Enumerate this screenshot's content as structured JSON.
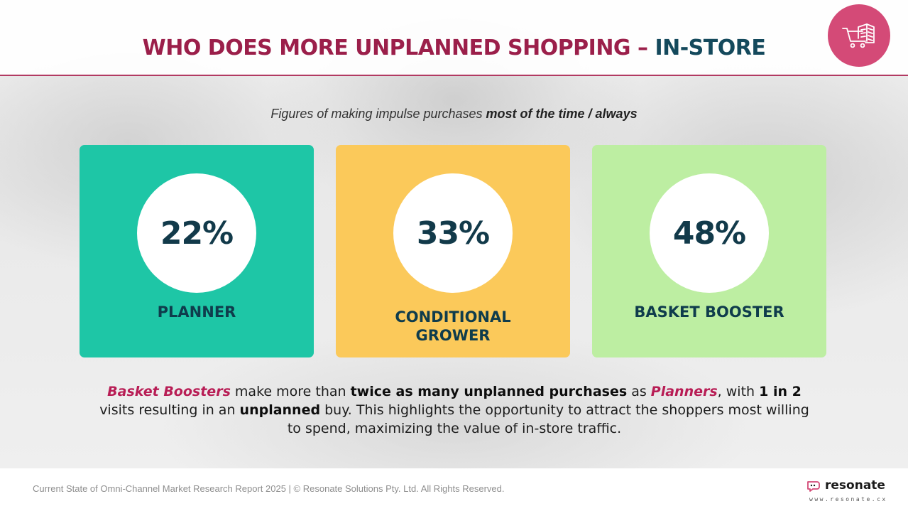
{
  "header": {
    "title_main": "WHO DOES MORE UNPLANNED SHOPPING – ",
    "title_accent": "IN-STORE",
    "logo_icon": "shopping-cart-building-icon"
  },
  "subtitle": {
    "lead": "Figures of making impulse purchases ",
    "emphasis": "most of the time / always"
  },
  "cards": [
    {
      "percent": "22%",
      "label": "PLANNER",
      "color": "#1ec6a6"
    },
    {
      "percent": "33%",
      "label_line1": "CONDITIONAL",
      "label_line2": "GROWER",
      "color": "#fbc95a"
    },
    {
      "percent": "48%",
      "label": "BASKET BOOSTER",
      "color": "#bdeea2"
    }
  ],
  "summary": {
    "p1": "Basket Boosters",
    "p2": " make more than ",
    "p3": "twice as many unplanned purchases",
    "p4": " as ",
    "p5": "Planners",
    "p6": ", with ",
    "p7": "1 in 2",
    "p8": " visits resulting in an ",
    "p9": "unplanned",
    "p10": " buy. This highlights the opportunity to attract the shoppers most willing to spend, maximizing the value of in-store traffic."
  },
  "footer": {
    "copyright": "Current State of Omni-Channel Market Research Report 2025 | © Resonate Solutions Pty. Ltd. All Rights Reserved.",
    "brand_name": "resonate",
    "brand_url": "www.resonate.cx"
  },
  "colors": {
    "title": "#9b1f4a",
    "title_accent": "#14495c",
    "logo_bg": "#d44a77",
    "highlight": "#b81d55"
  }
}
